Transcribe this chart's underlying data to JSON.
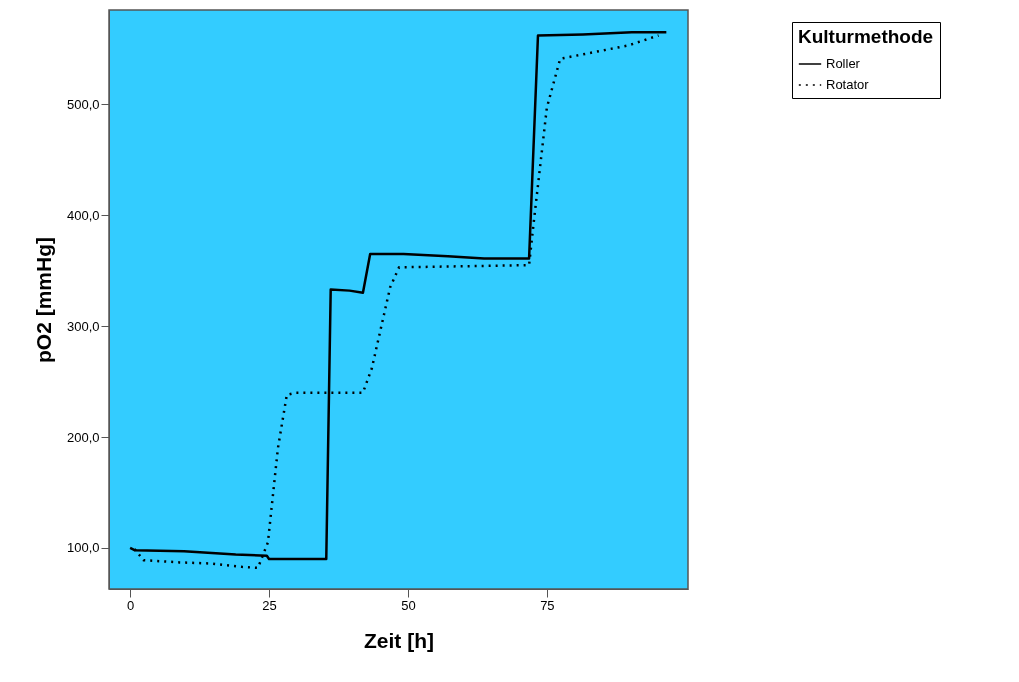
{
  "chart_data": {
    "type": "line",
    "xlabel": "Zeit [h]",
    "ylabel": "pO2 [mmHg]",
    "legend_title": "Kulturmethode",
    "legend": "top right",
    "grid": false,
    "xlim": [
      -3.8,
      100.4
    ],
    "ylim": [
      63,
      585
    ],
    "xticks": [
      0,
      25,
      50,
      75
    ],
    "yticks": [
      {
        "value": 100,
        "label": "100,0"
      },
      {
        "value": 200,
        "label": "200,0"
      },
      {
        "value": 300,
        "label": "300,0"
      },
      {
        "value": 400,
        "label": "400,0"
      },
      {
        "value": 500,
        "label": "500,0"
      }
    ],
    "series": [
      {
        "name": "Roller",
        "color": "#000000",
        "line_style": "solid",
        "x": [
          0,
          0.8,
          9.7,
          19,
          24.6,
          25,
          35.3,
          36.1,
          39.5,
          41.9,
          43.2,
          49.2,
          57.2,
          63.7,
          71.8,
          73.4,
          81.5,
          90.3,
          96.5
        ],
        "values": [
          100,
          98,
          97,
          94,
          93,
          90,
          90,
          333,
          332,
          330,
          365,
          365,
          363,
          361,
          361,
          562,
          563,
          565,
          565
        ]
      },
      {
        "name": "Rotator",
        "color": "#000000",
        "line_style": "dotted",
        "x": [
          0.8,
          2.4,
          8.9,
          14.5,
          20.1,
          23,
          24.8,
          26.6,
          28.2,
          29.9,
          41.9,
          43.5,
          46.8,
          48.4,
          71.8,
          72.6,
          75,
          77.4,
          89.6,
          95.1
        ],
        "values": [
          99,
          89,
          87,
          86,
          83,
          82,
          105,
          190,
          238,
          240,
          240,
          262,
          335,
          353,
          355,
          392,
          497,
          541,
          553,
          562
        ]
      }
    ]
  }
}
